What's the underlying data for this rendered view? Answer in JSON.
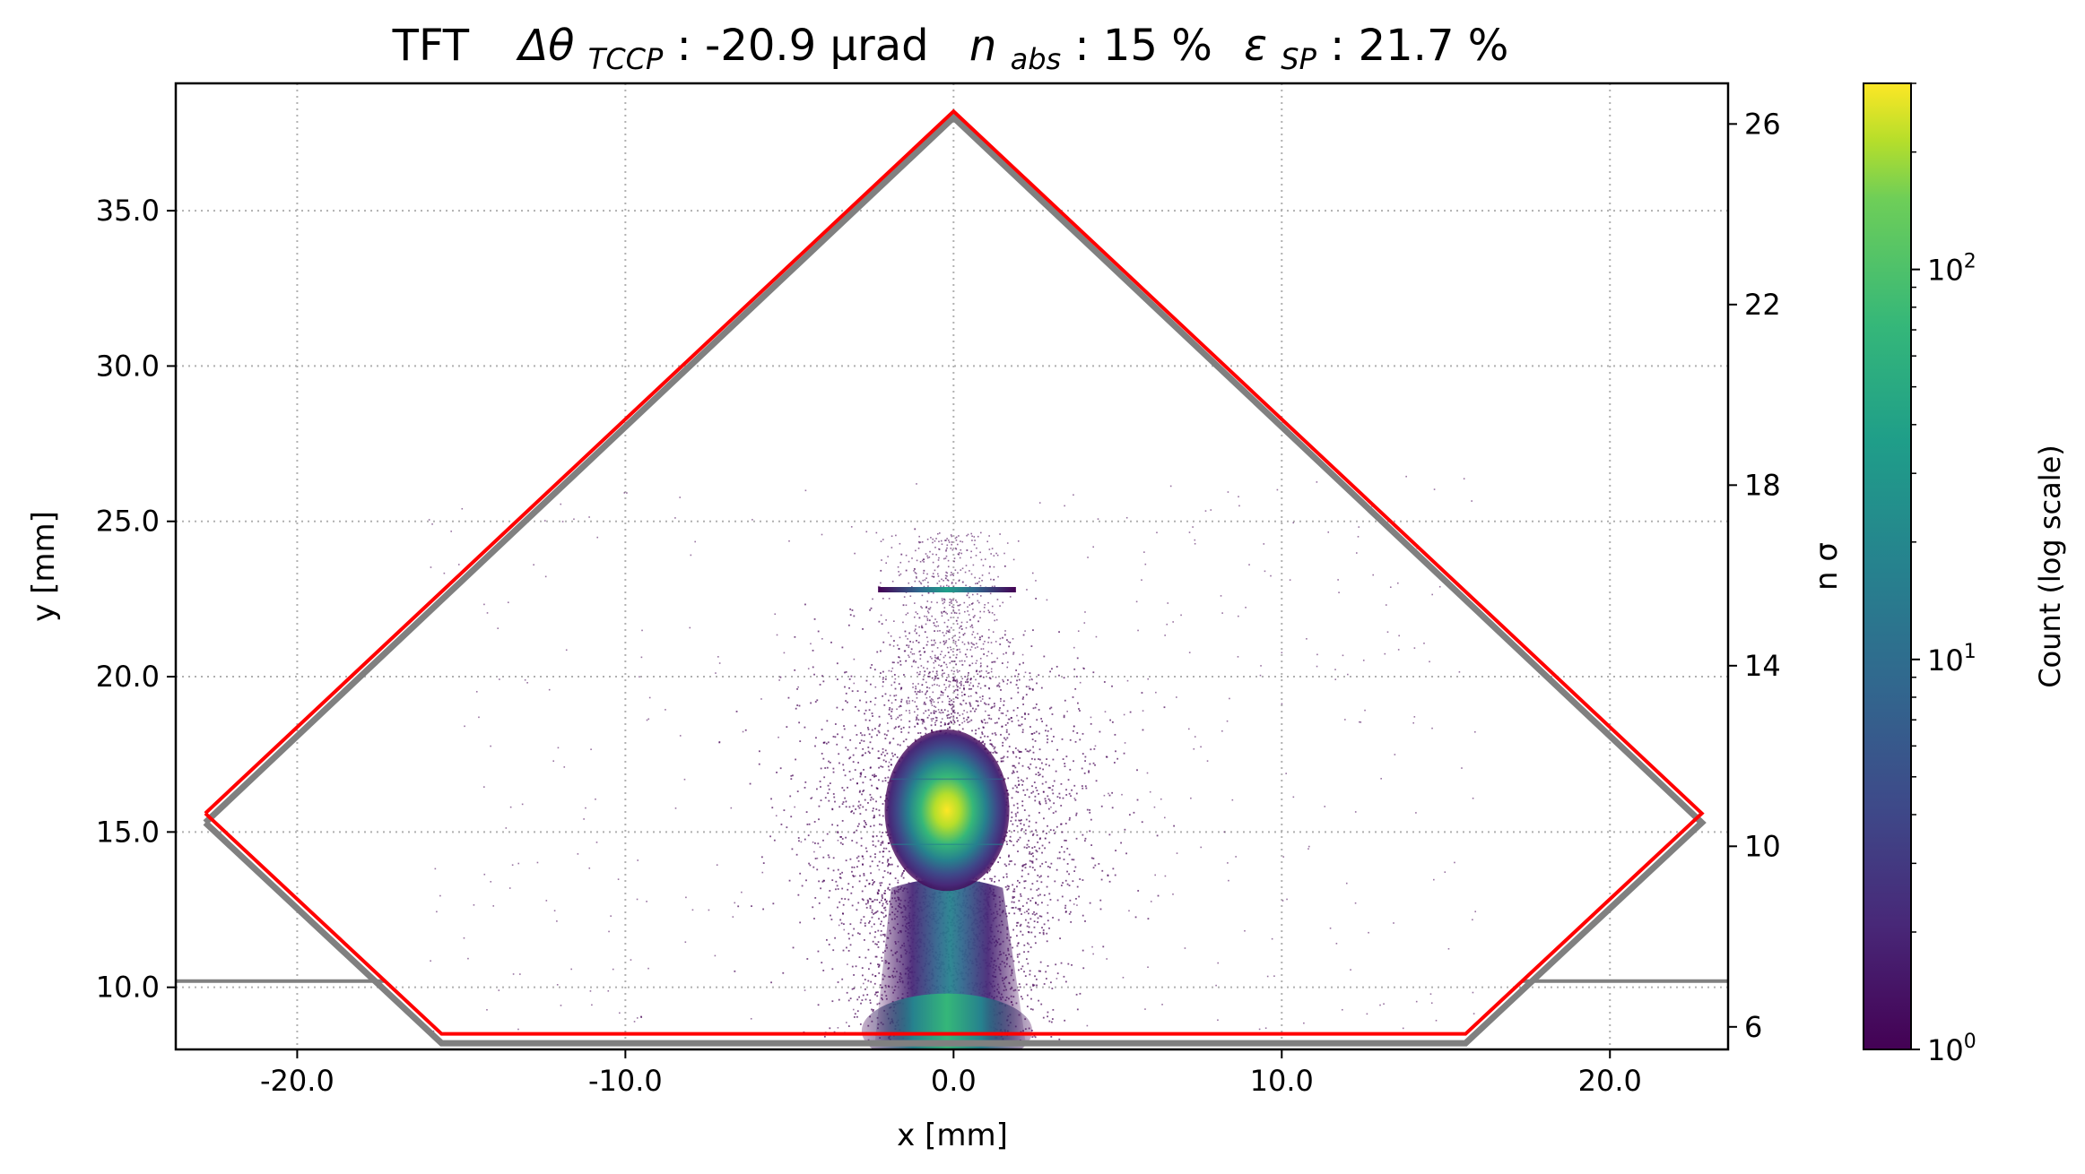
{
  "chart_data": {
    "type": "heatmap",
    "title": {
      "prefix": "TFT",
      "delta_label": "Δθ",
      "delta_sub": "TCCP",
      "delta_value": ":  -20.9 μrad",
      "nabs_label": "n",
      "nabs_sub": "abs",
      "nabs_value": ": 15 %",
      "eps_label": "ε",
      "eps_sub": "SP",
      "eps_value": ": 21.7 %"
    },
    "xlabel": "x [mm]",
    "ylabel": "y [mm]",
    "y2label": "n σ",
    "colorbar_label": "Count (log scale)",
    "colormap": "viridis",
    "xlim": [
      -23.7,
      23.6
    ],
    "ylim": [
      8.0,
      39.1
    ],
    "y2lim": [
      5.5,
      26.9
    ],
    "xticks": [
      -20,
      -10,
      0,
      10,
      20
    ],
    "xtick_labels": [
      "-20.0",
      "-10.0",
      "0.0",
      "10.0",
      "20.0"
    ],
    "yticks": [
      10,
      15,
      20,
      25,
      30,
      35
    ],
    "ytick_labels": [
      "10.0",
      "15.0",
      "20.0",
      "25.0",
      "30.0",
      "35.0"
    ],
    "y2ticks": [
      6,
      10,
      14,
      18,
      22,
      26
    ],
    "y2tick_labels": [
      "6",
      "10",
      "14",
      "18",
      "22",
      "26"
    ],
    "colorbar_ticks": [
      {
        "value": 1,
        "base": "10",
        "exp": "0"
      },
      {
        "value": 10,
        "base": "10",
        "exp": "1"
      },
      {
        "value": 100,
        "base": "10",
        "exp": "2"
      }
    ],
    "colorbar_range": [
      1,
      300
    ],
    "grid": true,
    "aperture_red": [
      [
        -22.8,
        15.6
      ],
      [
        0.0,
        38.2
      ],
      [
        22.8,
        15.6
      ],
      [
        15.6,
        8.5
      ],
      [
        -15.6,
        8.5
      ],
      [
        -22.8,
        15.6
      ]
    ],
    "aperture_gray": [
      [
        -22.8,
        15.3
      ],
      [
        0.0,
        38.0
      ],
      [
        22.8,
        15.3
      ],
      [
        15.6,
        8.2
      ],
      [
        -15.6,
        8.2
      ],
      [
        -22.8,
        15.3
      ]
    ],
    "gray_horizontal_lines": [
      {
        "x": [
          -23.7,
          -17.3
        ],
        "y": 10.2
      },
      {
        "x": [
          17.3,
          23.6
        ],
        "y": 10.2
      }
    ],
    "beam_core": {
      "center_x": -0.2,
      "center_y": 15.7,
      "sigma_x": 1.9,
      "sigma_y": 2.6,
      "peak_count": 300
    },
    "beam_tail": {
      "center_x": -0.2,
      "y_min": 8.2,
      "y_max": 13.2,
      "peak_count": 80
    },
    "secondary_band": {
      "y": 22.8,
      "x_min": -2.3,
      "x_max": 1.9
    }
  }
}
